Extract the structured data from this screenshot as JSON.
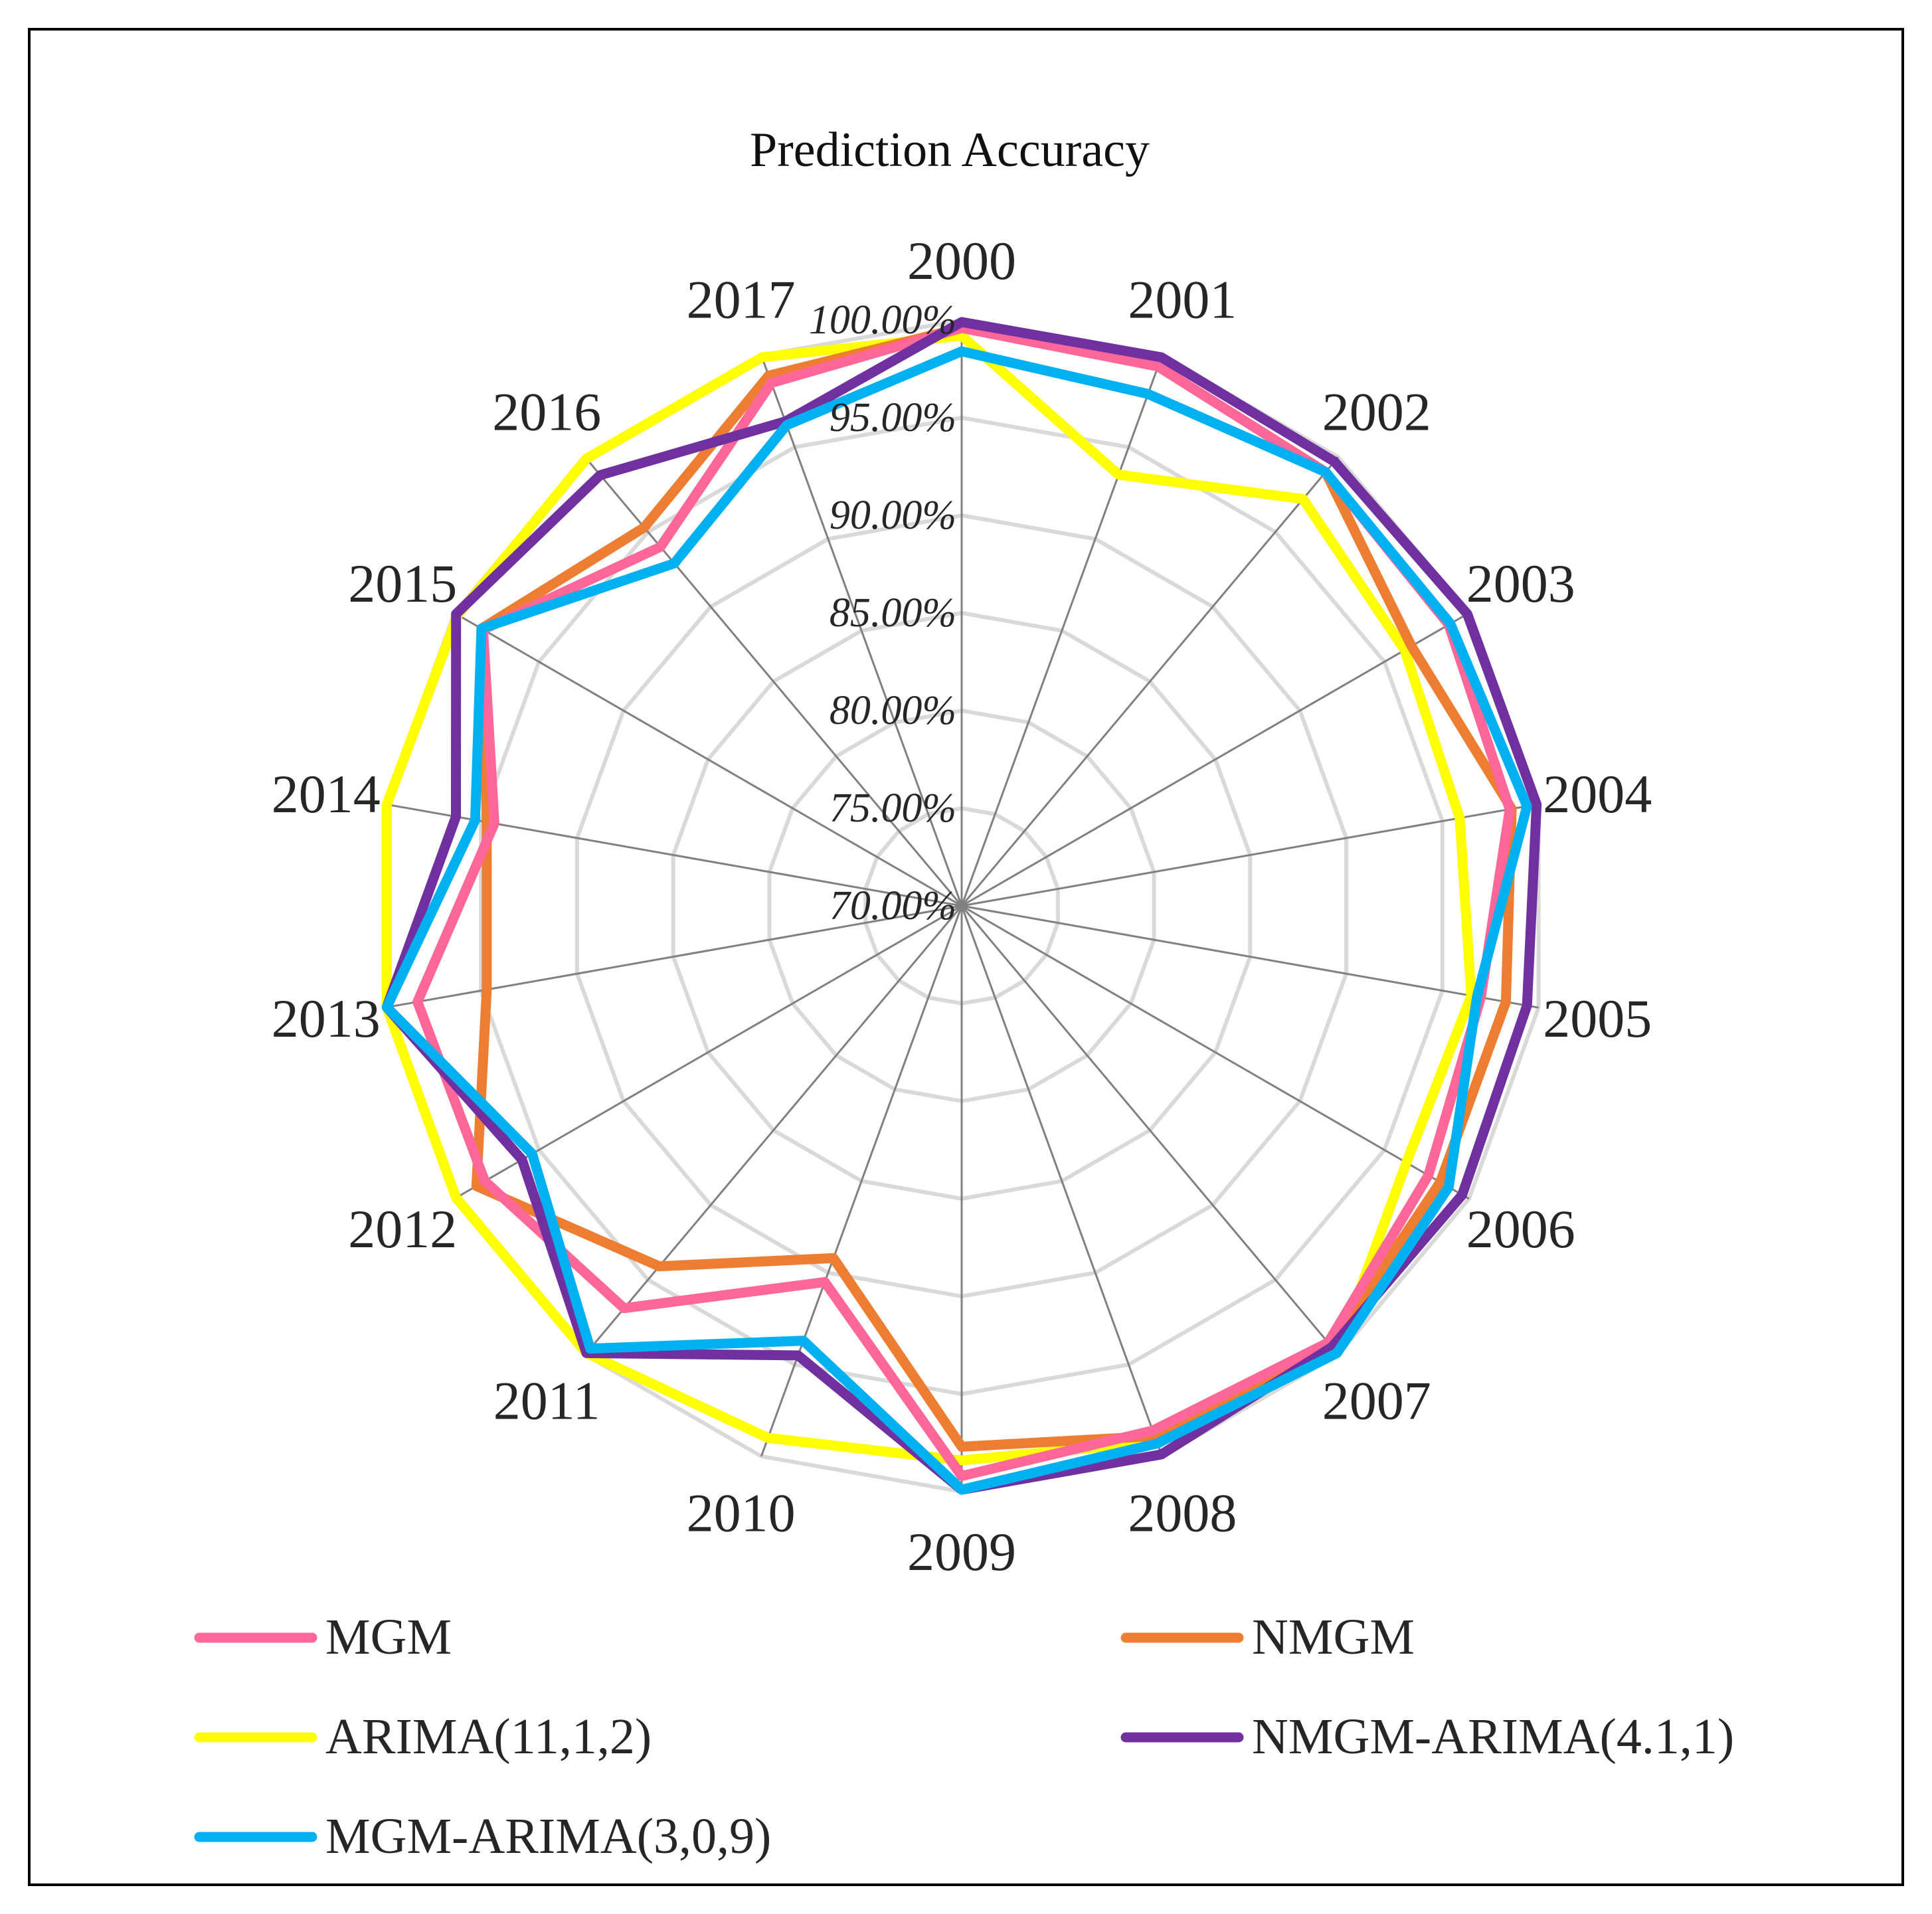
{
  "chart_data": {
    "type": "radar",
    "title": "Prediction Accuracy",
    "categories": [
      "2000",
      "2001",
      "2002",
      "2003",
      "2004",
      "2005",
      "2006",
      "2007",
      "2008",
      "2009",
      "2010",
      "2011",
      "2012",
      "2013",
      "2014",
      "2015",
      "2016",
      "2017"
    ],
    "axis": {
      "min": 70,
      "max": 100,
      "tick_values": [
        70,
        75,
        80,
        85,
        90,
        95,
        100
      ],
      "tick_labels": [
        "70.00%",
        "75.00%",
        "80.00%",
        "85.00%",
        "90.00%",
        "95.00%",
        "100.00%"
      ]
    },
    "legend_position": "bottom",
    "series": [
      {
        "name": "MGM",
        "color": "#ff6699",
        "values": [
          99.6,
          99.4,
          99.0,
          98.8,
          98.5,
          97.0,
          97.6,
          99.2,
          98.6,
          99.2,
          90.5,
          96.9,
          98.2,
          98.3,
          94.3,
          98.3,
          94.0,
          98.5
        ]
      },
      {
        "name": "NMGM",
        "color": "#ed7d31",
        "values": [
          99.6,
          99.4,
          99.0,
          96.6,
          98.6,
          98.3,
          98.3,
          99.4,
          98.9,
          97.7,
          89.2,
          94.1,
          98.7,
          94.7,
          94.7,
          98.4,
          95.3,
          98.9
        ]
      },
      {
        "name": "ARIMA(11,1,2)",
        "color": "#ffff00",
        "values": [
          99.2,
          93.5,
          97.2,
          96.2,
          95.9,
          96.5,
          96.3,
          99.9,
          99.2,
          98.4,
          99.0,
          99.9,
          99.9,
          99.9,
          99.9,
          99.8,
          99.9,
          99.9
        ]
      },
      {
        "name": "NMGM-ARIMA(4.1,1)",
        "color": "#7030a0",
        "values": [
          99.9,
          99.9,
          99.7,
          99.9,
          99.9,
          99.4,
          99.6,
          99.5,
          99.9,
          99.9,
          94.5,
          99.9,
          96.0,
          99.9,
          96.3,
          99.9,
          98.8,
          96.4
        ]
      },
      {
        "name": "MGM-ARIMA(3,0,9)",
        "color": "#00b0f0",
        "values": [
          98.4,
          97.9,
          99.0,
          98.9,
          99.4,
          96.8,
          98.8,
          99.9,
          99.3,
          99.9,
          93.7,
          99.6,
          95.4,
          99.9,
          95.3,
          98.4,
          92.9,
          96.2
        ]
      }
    ]
  }
}
